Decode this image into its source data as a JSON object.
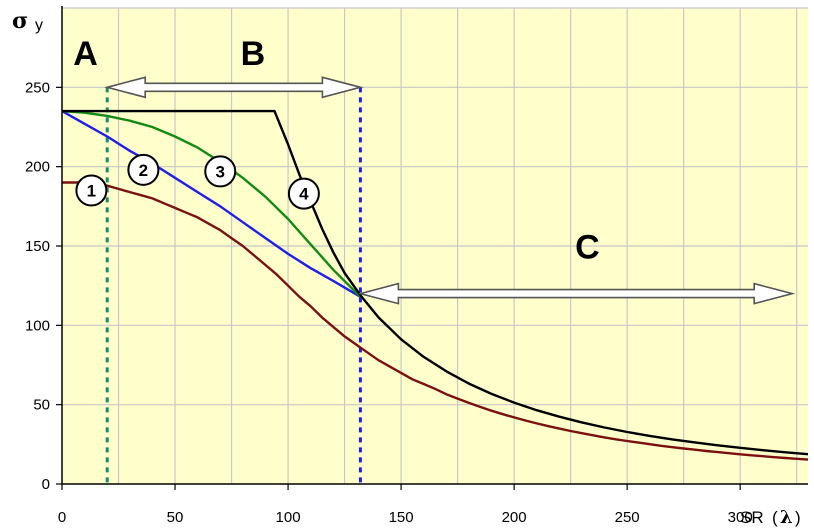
{
  "chart_data": {
    "type": "line",
    "title": "",
    "ylabel": "σ",
    "ylabel_sub": "y",
    "xlabel": "SR",
    "xlabel_symbol": "λ",
    "xlim": [
      0,
      330
    ],
    "ylim": [
      0,
      300
    ],
    "xticks": [
      0,
      50,
      100,
      150,
      200,
      250,
      300
    ],
    "yticks": [
      0,
      50,
      100,
      150,
      200,
      250
    ],
    "grid": true,
    "background": "#FFFFCC",
    "series": [
      {
        "name": "1",
        "color": "#7B1010",
        "x": [
          0,
          5,
          10,
          15,
          20,
          25,
          30,
          35,
          40,
          45,
          50,
          55,
          60,
          65,
          70,
          75,
          80,
          85,
          90,
          95,
          100,
          105,
          110,
          115,
          120,
          125,
          130,
          135,
          140,
          145,
          150,
          155,
          160,
          165,
          170,
          175,
          180,
          185,
          190,
          195,
          200,
          205,
          210,
          215,
          220,
          225,
          230,
          235,
          240,
          245,
          250,
          255,
          260,
          265,
          270,
          275,
          280,
          285,
          290,
          295,
          300,
          305,
          310,
          315,
          320,
          325,
          330
        ],
        "y": [
          190,
          190,
          190,
          189,
          188,
          186,
          184,
          182,
          180,
          177,
          174,
          171,
          168,
          164,
          160,
          155,
          150,
          144,
          138,
          132,
          125,
          118,
          112,
          105,
          99,
          93,
          88,
          83,
          78,
          74,
          70,
          66,
          63,
          60,
          56.6,
          53.8,
          51.1,
          48.6,
          46.2,
          44.0,
          42.0,
          40.0,
          38.2,
          36.5,
          34.9,
          33.4,
          32.0,
          30.7,
          29.4,
          28.2,
          27.1,
          26.1,
          25.1,
          24.1,
          23.2,
          22.4,
          21.6,
          20.8,
          20.1,
          19.4,
          18.7,
          18.1,
          17.5,
          16.9,
          16.4,
          15.9,
          15.4
        ]
      },
      {
        "name": "2",
        "color": "#1F1FE8",
        "x": [
          0,
          10,
          20,
          30,
          40,
          50,
          60,
          70,
          80,
          90,
          100,
          110,
          120,
          132
        ],
        "y": [
          235,
          227,
          219,
          210,
          202,
          193,
          184,
          175,
          165,
          155,
          145,
          136,
          128,
          118
        ]
      },
      {
        "name": "3",
        "color": "#138A13",
        "x": [
          0,
          10,
          20,
          30,
          40,
          50,
          60,
          70,
          80,
          90,
          100,
          110,
          120,
          132
        ],
        "y": [
          235,
          234,
          232,
          229,
          225,
          219,
          212,
          203,
          193,
          181,
          167,
          151,
          135,
          118
        ]
      },
      {
        "name": "4",
        "color": "#000000",
        "x": [
          0,
          20,
          40,
          60,
          80,
          94,
          100,
          105,
          110,
          115,
          120,
          125,
          132,
          140,
          150,
          160,
          170,
          180,
          190,
          200,
          210,
          220,
          230,
          240,
          250,
          260,
          270,
          280,
          290,
          300,
          310,
          320,
          330
        ],
        "y": [
          235,
          235,
          235,
          235,
          235,
          235,
          214,
          195,
          178,
          161,
          146,
          133,
          119,
          105,
          91.2,
          80.1,
          71.0,
          63.3,
          56.8,
          51.3,
          46.5,
          42.4,
          38.8,
          35.6,
          32.8,
          30.3,
          28.1,
          26.2,
          24.4,
          22.8,
          21.3,
          20.0,
          18.8
        ]
      }
    ],
    "region_labels": [
      {
        "label": "A",
        "x": 5,
        "y": 264
      },
      {
        "label": "B",
        "x": 79,
        "y": 264
      },
      {
        "label": "C",
        "x": 227,
        "y": 142
      }
    ],
    "vertical_lines": [
      {
        "x": 20,
        "color": "#1A8A6A"
      },
      {
        "x": 132,
        "color": "#1F1FE8"
      }
    ],
    "range_arrows": [
      {
        "from": 20,
        "to": 132,
        "y": 250
      },
      {
        "from": 132,
        "to": 323,
        "y": 120
      }
    ],
    "curve_markers": [
      {
        "label": "1",
        "x": 13,
        "y": 185
      },
      {
        "label": "2",
        "x": 36,
        "y": 198
      },
      {
        "label": "3",
        "x": 70,
        "y": 197
      },
      {
        "label": "4",
        "x": 107,
        "y": 183
      }
    ]
  }
}
